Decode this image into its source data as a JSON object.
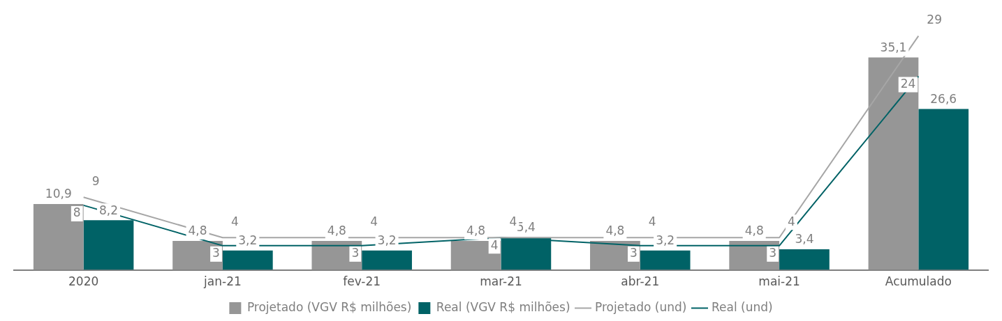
{
  "chart_data": {
    "type": "bar",
    "categories": [
      "2020",
      "jan-21",
      "fev-21",
      "mar-21",
      "abr-21",
      "mai-21",
      "Acumulado"
    ],
    "series": [
      {
        "name": "Projetado (VGV R$ milhões)",
        "color": "#969696",
        "values": [
          10.9,
          4.8,
          4.8,
          4.8,
          4.8,
          4.8,
          35.1
        ],
        "value_labels": [
          "10,9",
          "4,8",
          "4,8",
          "4,8",
          "4,8",
          "4,8",
          "35,1"
        ]
      },
      {
        "name": "Real (VGV R$ milhões)",
        "color": "#006266",
        "values": [
          8.2,
          3.2,
          3.2,
          5.4,
          3.2,
          3.4,
          26.6
        ],
        "value_labels": [
          "8,2",
          "3,2",
          "3,2",
          "5,4",
          "3,2",
          "3,4",
          "26,6"
        ]
      },
      {
        "name": "Projetado (und)",
        "type": "line",
        "axis": "y2",
        "color": "#a6a6a6",
        "values": [
          9,
          4,
          4,
          4,
          4,
          4,
          29
        ],
        "value_labels": [
          "9",
          "4",
          "4",
          "4",
          "4",
          "4",
          "29"
        ]
      },
      {
        "name": "Real (und)",
        "type": "line",
        "axis": "y2",
        "color": "#006266",
        "values": [
          8,
          3,
          3,
          4,
          3,
          3,
          24
        ],
        "value_labels": [
          "8",
          "3",
          "3",
          "4",
          "3",
          "3",
          "24"
        ]
      }
    ],
    "legend": "bottom",
    "grid": false,
    "marker": "none",
    "line_style": "solid"
  }
}
